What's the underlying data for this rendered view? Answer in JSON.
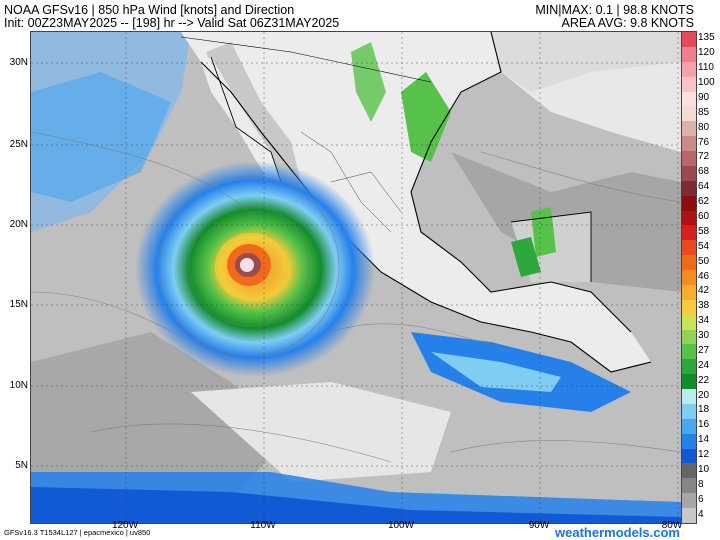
{
  "header": {
    "title": "NOAA GFSv16 |  850 hPa Wind [knots] and Direction",
    "init": "Init: 00Z23MAY2025 -- [198] hr --> Valid Sat 06Z31MAY2025",
    "minmax": "MIN|MAX: 0.1 | 98.8 KNOTS",
    "area_avg": "AREA AVG: 9.8 KNOTS"
  },
  "lat_labels": [
    "30N",
    "25N",
    "20N",
    "15N",
    "10N",
    "5N"
  ],
  "lon_labels": [
    "120W",
    "110W",
    "100W",
    "90W",
    "80W"
  ],
  "footer": "GFSv16.3 T1534L127 | epacmexico | uv850",
  "brand": "weathermodels.com",
  "colorbar": {
    "levels": [
      "135",
      "120",
      "110",
      "100",
      "90",
      "85",
      "80",
      "76",
      "72",
      "68",
      "64",
      "62",
      "60",
      "58",
      "54",
      "50",
      "46",
      "42",
      "38",
      "34",
      "30",
      "27",
      "24",
      "22",
      "20",
      "18",
      "16",
      "14",
      "12",
      "10",
      "8",
      "6",
      "4"
    ],
    "colors": [
      "#e34a5a",
      "#ef7f8a",
      "#f4a3ab",
      "#f8c4c8",
      "#fbe0e2",
      "#f2dcd4",
      "#ddb0a8",
      "#c98c84",
      "#b5696b",
      "#9a4b52",
      "#7b2d33",
      "#8b0d0d",
      "#b01010",
      "#d42020",
      "#e94a20",
      "#f06a1a",
      "#f58c20",
      "#f7ad2e",
      "#f4cb3a",
      "#c8e25a",
      "#8fd45a",
      "#57c24a",
      "#2ea83a",
      "#138c2c",
      "#b8ecf5",
      "#7fcdf2",
      "#48a7ef",
      "#2680ea",
      "#1259d6",
      "#666666",
      "#868686",
      "#a6a6a6",
      "#c8c8c8"
    ]
  }
}
